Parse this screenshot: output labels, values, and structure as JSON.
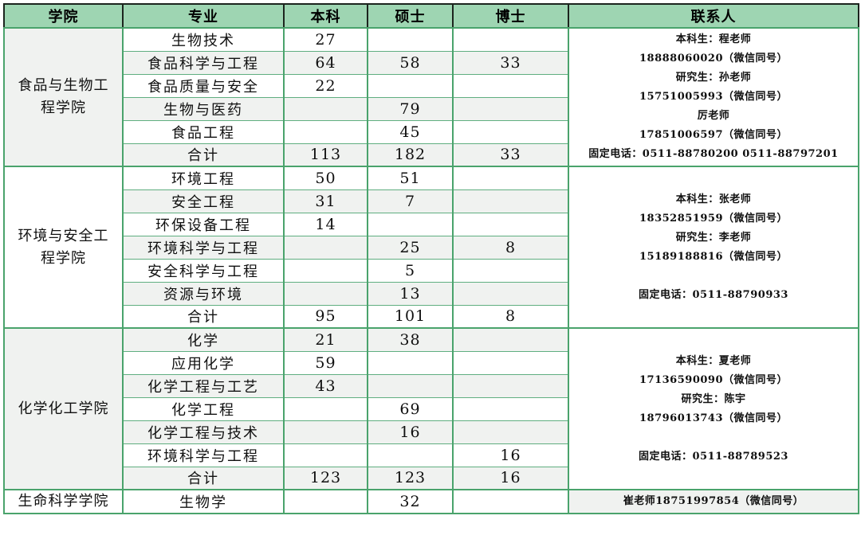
{
  "colors": {
    "header_bg": "#9ed5b2",
    "grid_green": "#4aa36c",
    "grid_green_light": "#5fae80",
    "grid_dark": "#1c241e",
    "stripe_bg": "#f0f2f0",
    "cell_bg": "#ffffff",
    "text": "#101010"
  },
  "chart_data": {
    "type": "table",
    "columns": [
      "学院",
      "专业",
      "本科",
      "硕士",
      "博士",
      "联系人"
    ],
    "sections": [
      {
        "college": "食品与生物工程学院",
        "college_shaded": true,
        "contact_shaded": false,
        "contact_lines": [
          "本科生：程老师",
          "18888060020（微信同号）",
          "研究生：孙老师",
          "15751005993（微信同号）",
          "厉老师",
          "17851006597（微信同号）",
          "固定电话：0511-88780200 0511-88797201"
        ],
        "rows": [
          [
            "生物技术",
            "27",
            "",
            ""
          ],
          [
            "食品科学与工程",
            "64",
            "58",
            "33"
          ],
          [
            "食品质量与安全",
            "22",
            "",
            ""
          ],
          [
            "生物与医药",
            "",
            "79",
            ""
          ],
          [
            "食品工程",
            "",
            "45",
            ""
          ],
          [
            "合计",
            "113",
            "182",
            "33"
          ]
        ]
      },
      {
        "college": "环境与安全工程学院",
        "college_shaded": false,
        "contact_shaded": false,
        "contact_lines": [
          "本科生：张老师",
          "18352851959（微信同号）",
          "研究生：李老师",
          "15189188816（微信同号）",
          "",
          "固定电话：0511-88790933"
        ],
        "rows": [
          [
            "环境工程",
            "50",
            "51",
            ""
          ],
          [
            "安全工程",
            "31",
            "7",
            ""
          ],
          [
            "环保设备工程",
            "14",
            "",
            ""
          ],
          [
            "环境科学与工程",
            "",
            "25",
            "8"
          ],
          [
            "安全科学与工程",
            "",
            "5",
            ""
          ],
          [
            "资源与环境",
            "",
            "13",
            ""
          ],
          [
            "合计",
            "95",
            "101",
            "8"
          ]
        ]
      },
      {
        "college": "化学化工学院",
        "college_shaded": true,
        "contact_shaded": false,
        "contact_lines": [
          "本科生：夏老师",
          "17136590090（微信同号）",
          "研究生：陈宇",
          "18796013743（微信同号）",
          "",
          "固定电话：0511-88789523"
        ],
        "rows": [
          [
            "化学",
            "21",
            "38",
            ""
          ],
          [
            "应用化学",
            "59",
            "",
            ""
          ],
          [
            "化学工程与工艺",
            "43",
            "",
            ""
          ],
          [
            "化学工程",
            "",
            "69",
            ""
          ],
          [
            "化学工程与技术",
            "",
            "16",
            ""
          ],
          [
            "环境科学与工程",
            "",
            "",
            "16"
          ],
          [
            "合计",
            "123",
            "123",
            "16"
          ]
        ]
      },
      {
        "college": "生命科学学院",
        "college_shaded": false,
        "contact_shaded": true,
        "contact_lines": [
          "崔老师18751997854（微信同号）"
        ],
        "rows": [
          [
            "生物学",
            "",
            "32",
            ""
          ]
        ]
      }
    ]
  }
}
